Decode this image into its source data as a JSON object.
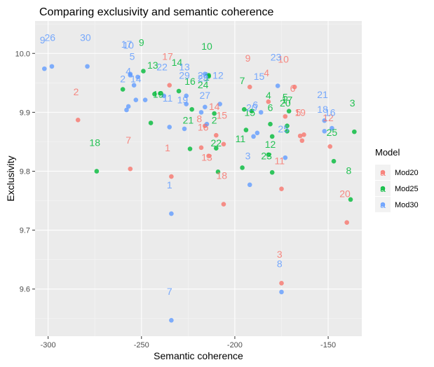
{
  "chart_data": {
    "type": "scatter",
    "title": "Comparing exclusivity and semantic coherence",
    "xlabel": "Semantic coherence",
    "ylabel": "Exclusivity",
    "xlim": [
      -307,
      -132
    ],
    "ylim": [
      9.52,
      10.055
    ],
    "xticks": [
      -300,
      -250,
      -200,
      -150
    ],
    "yticks": [
      9.6,
      9.7,
      9.8,
      9.9,
      10.0
    ],
    "xtick_labels": [
      "-300",
      "-250",
      "-200",
      "-150"
    ],
    "ytick_labels": [
      "9.6",
      "9.7",
      "9.8",
      "9.9",
      "10.0"
    ],
    "grid": true,
    "legend": {
      "title": "Model",
      "position": "right"
    },
    "series": [
      {
        "name": "Mod20",
        "color": "#F8766D",
        "points": [
          {
            "label": "1",
            "x": -234,
            "y": 9.791,
            "lx": -236,
            "ly": 9.84
          },
          {
            "label": "2",
            "x": -284,
            "y": 9.887,
            "lx": -285,
            "ly": 9.935
          },
          {
            "label": "3",
            "x": -175,
            "y": 9.61,
            "lx": -176,
            "ly": 9.659
          },
          {
            "label": "4",
            "x": -182,
            "y": 9.918,
            "lx": -183,
            "ly": 9.967
          },
          {
            "label": "5",
            "x": -165,
            "y": 9.86,
            "lx": -166,
            "ly": 9.9
          },
          {
            "label": "6",
            "x": -168,
            "y": 9.943,
            "lx": -169,
            "ly": 9.941
          },
          {
            "label": "7",
            "x": -256,
            "y": 9.804,
            "lx": -257,
            "ly": 9.853
          },
          {
            "label": "8",
            "x": -218,
            "y": 9.84,
            "lx": -219,
            "ly": 9.889
          },
          {
            "label": "9",
            "x": -192,
            "y": 9.943,
            "lx": -193,
            "ly": 9.992
          },
          {
            "label": "10",
            "x": -173,
            "y": 9.893,
            "lx": -174,
            "ly": 9.99
          },
          {
            "label": "11",
            "x": -175,
            "y": 9.77,
            "lx": -176,
            "ly": 9.818
          },
          {
            "label": "12",
            "x": -149,
            "y": 9.842,
            "lx": -150,
            "ly": 9.891
          },
          {
            "label": "13",
            "x": -214,
            "y": 9.826,
            "lx": -215,
            "ly": 9.824
          },
          {
            "label": "14",
            "x": -210,
            "y": 9.861,
            "lx": -211,
            "ly": 9.91
          },
          {
            "label": "15",
            "x": -206,
            "y": 9.846,
            "lx": -207,
            "ly": 9.895
          },
          {
            "label": "16",
            "x": -216,
            "y": 9.877,
            "lx": -217,
            "ly": 9.875
          },
          {
            "label": "17",
            "x": -235,
            "y": 9.946,
            "lx": -236,
            "ly": 9.995
          },
          {
            "label": "18",
            "x": -206,
            "y": 9.744,
            "lx": -207,
            "ly": 9.793
          },
          {
            "label": "19",
            "x": -164,
            "y": 9.852,
            "lx": -165,
            "ly": 9.9
          },
          {
            "label": "20",
            "x": -140,
            "y": 9.713,
            "lx": -141,
            "ly": 9.762
          },
          {
            "label": "",
            "x": -163,
            "y": 9.862
          }
        ]
      },
      {
        "name": "Mod25",
        "color": "#00BA38",
        "points": [
          {
            "label": "1",
            "x": -214,
            "y": 9.961,
            "lx": -215,
            "ly": 9.96
          },
          {
            "label": "2",
            "x": -210,
            "y": 9.839,
            "lx": -211,
            "ly": 9.887
          },
          {
            "label": "3",
            "x": -136,
            "y": 9.867,
            "lx": -137,
            "ly": 9.916
          },
          {
            "label": "4",
            "x": -181,
            "y": 9.88,
            "lx": -182,
            "ly": 9.929
          },
          {
            "label": "5",
            "x": -172,
            "y": 9.877,
            "lx": -173,
            "ly": 9.926
          },
          {
            "label": "6",
            "x": -180,
            "y": 9.859,
            "lx": -181,
            "ly": 9.908
          },
          {
            "label": "7",
            "x": -195,
            "y": 9.905,
            "lx": -196,
            "ly": 9.954
          },
          {
            "label": "8",
            "x": -138,
            "y": 9.752,
            "lx": -139,
            "ly": 9.801
          },
          {
            "label": "9",
            "x": -249,
            "y": 9.97,
            "lx": -250,
            "ly": 10.019
          },
          {
            "label": "10",
            "x": -214,
            "y": 9.963,
            "lx": -215,
            "ly": 10.012
          },
          {
            "label": "11",
            "x": -196,
            "y": 9.806,
            "lx": -197,
            "ly": 9.855
          },
          {
            "label": "12",
            "x": -180,
            "y": 9.798,
            "lx": -181,
            "ly": 9.846
          },
          {
            "label": "13",
            "x": -243,
            "y": 9.931,
            "lx": -244,
            "ly": 9.98
          },
          {
            "label": "14",
            "x": -230,
            "y": 9.936,
            "lx": -231,
            "ly": 9.985
          },
          {
            "label": "15",
            "x": -191,
            "y": 9.902,
            "lx": -192,
            "ly": 9.9
          },
          {
            "label": "16",
            "x": -223,
            "y": 9.905,
            "lx": -224,
            "ly": 9.953
          },
          {
            "label": "17",
            "x": -171,
            "y": 9.902,
            "lx": -172,
            "ly": 9.921
          },
          {
            "label": "18",
            "x": -274,
            "y": 9.8,
            "lx": -275,
            "ly": 9.849
          },
          {
            "label": "19",
            "x": -240,
            "y": 9.932,
            "lx": -241,
            "ly": 9.931
          },
          {
            "label": "20",
            "x": -172,
            "y": 9.868,
            "lx": -173,
            "ly": 9.916
          },
          {
            "label": "21",
            "x": -224,
            "y": 9.838,
            "lx": -225,
            "ly": 9.887
          },
          {
            "label": "22",
            "x": -209,
            "y": 9.799,
            "lx": -210,
            "ly": 9.848
          },
          {
            "label": "23",
            "x": -182,
            "y": 9.828,
            "lx": -183,
            "ly": 9.826
          },
          {
            "label": "24",
            "x": -211,
            "y": 9.898,
            "lx": -217,
            "ly": 9.947
          },
          {
            "label": "25",
            "x": -147,
            "y": 9.817,
            "lx": -148,
            "ly": 9.866
          },
          {
            "label": "",
            "x": -260,
            "y": 9.939
          },
          {
            "label": "",
            "x": -245,
            "y": 9.882
          },
          {
            "label": "",
            "x": -194,
            "y": 9.87
          }
        ]
      },
      {
        "name": "Mod30",
        "color": "#619CFF",
        "points": [
          {
            "label": "1",
            "x": -234,
            "y": 9.728,
            "lx": -235,
            "ly": 9.777
          },
          {
            "label": "2",
            "x": -256,
            "y": 9.963,
            "lx": -260,
            "ly": 9.957
          },
          {
            "label": "3",
            "x": -192,
            "y": 9.777,
            "lx": -193,
            "ly": 9.826
          },
          {
            "label": "4",
            "x": -253,
            "y": 9.921,
            "lx": -257,
            "ly": 9.97
          },
          {
            "label": "5",
            "x": -254,
            "y": 9.946,
            "lx": -255,
            "ly": 9.995
          },
          {
            "label": "6",
            "x": -188,
            "y": 9.865,
            "lx": -189,
            "ly": 9.913
          },
          {
            "label": "7",
            "x": -234,
            "y": 9.547,
            "lx": -235,
            "ly": 9.596
          },
          {
            "label": "8",
            "x": -175,
            "y": 9.595,
            "lx": -176,
            "ly": 9.643
          },
          {
            "label": "9",
            "x": -302,
            "y": 9.974,
            "lx": -303,
            "ly": 10.023
          },
          {
            "label": "10",
            "x": -256,
            "y": 9.965,
            "lx": -257,
            "ly": 10.014
          },
          {
            "label": "11",
            "x": -235,
            "y": 9.875,
            "lx": -236,
            "ly": 9.924
          },
          {
            "label": "12",
            "x": -208,
            "y": 9.914,
            "lx": -209,
            "ly": 9.963
          },
          {
            "label": "13",
            "x": -226,
            "y": 9.928,
            "lx": -227,
            "ly": 9.977
          },
          {
            "label": "14",
            "x": -252,
            "y": 9.96,
            "lx": -253,
            "ly": 9.957
          },
          {
            "label": "15",
            "x": -186,
            "y": 9.9,
            "lx": -187,
            "ly": 9.961
          },
          {
            "label": "16",
            "x": -148,
            "y": 9.873,
            "lx": -149,
            "ly": 9.9
          },
          {
            "label": "17",
            "x": -257,
            "y": 9.91,
            "lx": -258,
            "ly": 10.016
          },
          {
            "label": "18",
            "x": -152,
            "y": 9.886,
            "lx": -153,
            "ly": 9.905
          },
          {
            "label": "19",
            "x": -227,
            "y": 9.872,
            "lx": -228,
            "ly": 9.921
          },
          {
            "label": "20",
            "x": -190,
            "y": 9.859,
            "lx": -191,
            "ly": 9.908
          },
          {
            "label": "21",
            "x": -152,
            "y": 9.868,
            "lx": -153,
            "ly": 9.93
          },
          {
            "label": "22",
            "x": -238,
            "y": 9.928,
            "lx": -239,
            "ly": 9.977
          },
          {
            "label": "23",
            "x": -177,
            "y": 9.945,
            "lx": -178,
            "ly": 9.994
          },
          {
            "label": "24",
            "x": -216,
            "y": 9.965,
            "lx": -217,
            "ly": 9.963
          },
          {
            "label": "25",
            "x": -173,
            "y": 9.823,
            "lx": -174,
            "ly": 9.872
          },
          {
            "label": "26",
            "x": -298,
            "y": 9.978,
            "lx": -299,
            "ly": 10.027
          },
          {
            "label": "27",
            "x": -215,
            "y": 9.88,
            "lx": -216,
            "ly": 9.929
          },
          {
            "label": "28",
            "x": -216,
            "y": 9.909,
            "lx": -217,
            "ly": 9.958
          },
          {
            "label": "29",
            "x": -226,
            "y": 9.914,
            "lx": -227,
            "ly": 9.963
          },
          {
            "label": "30",
            "x": -279,
            "y": 9.978,
            "lx": -280,
            "ly": 10.027
          },
          {
            "label": "",
            "x": -258,
            "y": 9.904
          },
          {
            "label": "",
            "x": -248,
            "y": 9.921
          },
          {
            "label": "",
            "x": -218,
            "y": 9.9
          }
        ]
      }
    ]
  }
}
